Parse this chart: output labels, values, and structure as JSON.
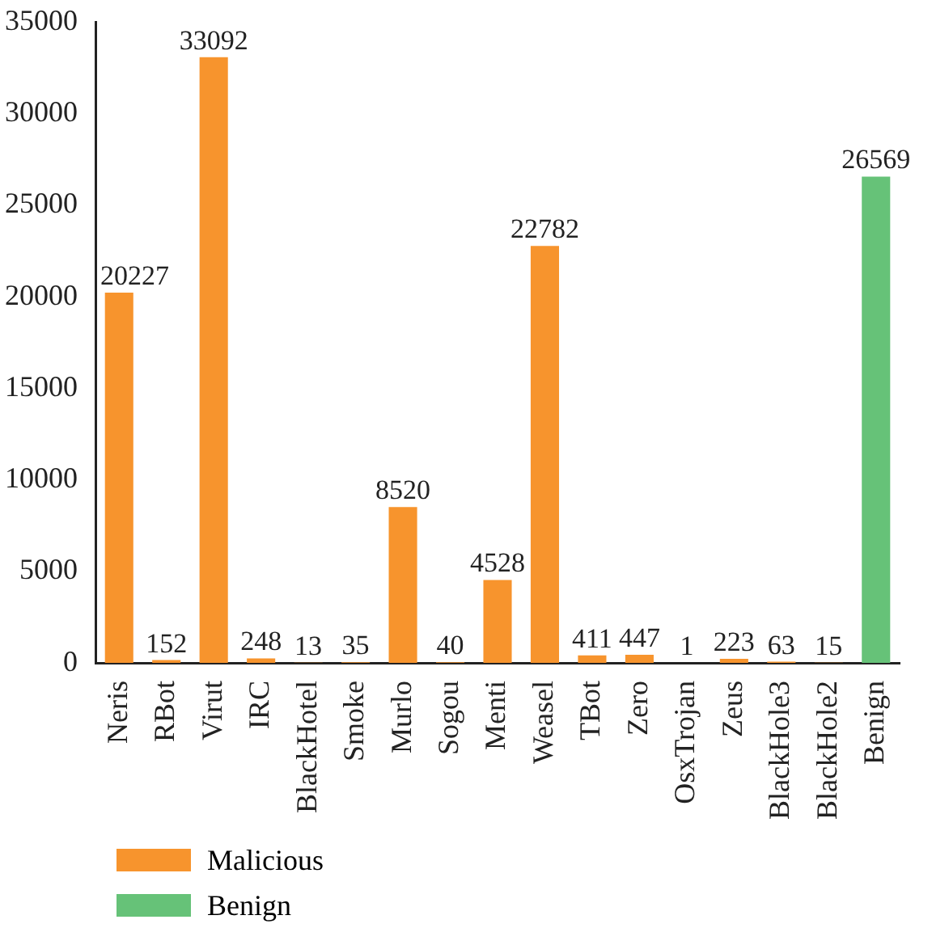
{
  "chart_data": {
    "type": "bar",
    "categories": [
      "Neris",
      "RBot",
      "Virut",
      "IRC",
      "BlackHotel",
      "Smoke",
      "Murlo",
      "Sogou",
      "Menti",
      "Weasel",
      "TBot",
      "Zero",
      "OsxTrojan",
      "Zeus",
      "BlackHole3",
      "BlackHole2",
      "Benign"
    ],
    "series": [
      {
        "name": "Malicious",
        "color": "#f7942d",
        "values": [
          20227,
          152,
          33092,
          248,
          13,
          35,
          8520,
          40,
          4528,
          22782,
          411,
          447,
          1,
          223,
          63,
          15,
          null
        ]
      },
      {
        "name": "Benign",
        "color": "#66c278",
        "values": [
          null,
          null,
          null,
          null,
          null,
          null,
          null,
          null,
          null,
          null,
          null,
          null,
          null,
          null,
          null,
          null,
          26569
        ]
      }
    ],
    "ylim": [
      0,
      35000
    ],
    "yticks": [
      0,
      5000,
      10000,
      15000,
      20000,
      25000,
      30000,
      35000
    ],
    "grid": false,
    "legend": "bottom left",
    "data_labels": true
  }
}
